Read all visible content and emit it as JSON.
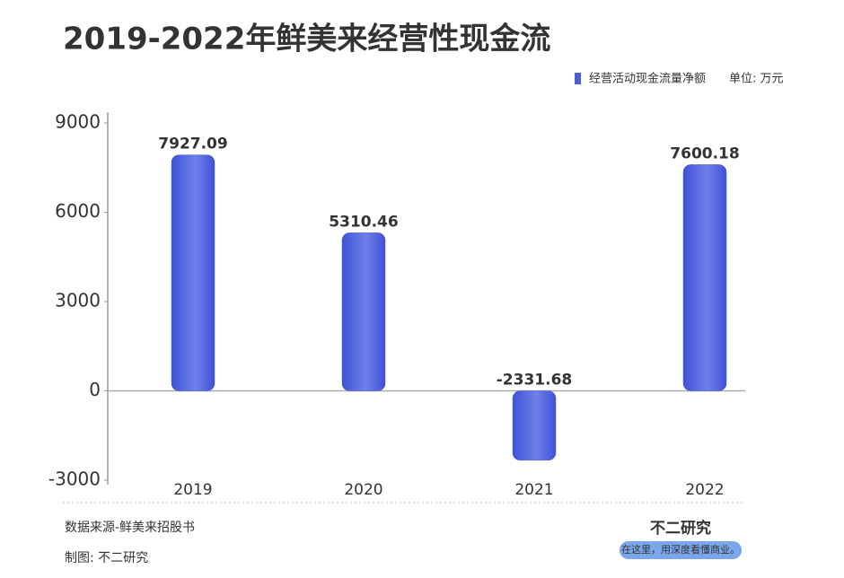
{
  "chart_data": {
    "type": "bar",
    "title": "2019-2022年鲜美来经营性现金流",
    "categories": [
      "2019",
      "2020",
      "2021",
      "2022"
    ],
    "series": [
      {
        "name": "经营活动现金流量净额",
        "color": "#4a5fd8",
        "values": [
          7927.09,
          5310.46,
          -2331.68,
          7600.18
        ]
      }
    ],
    "unit": "单位: 万元",
    "ylim": [
      -3000,
      9000
    ],
    "yticks": [
      -3000,
      0,
      3000,
      6000,
      9000
    ],
    "legend": "top-right",
    "source": "数据来源-鲜美来招股书",
    "credit": "制图: 不二研究",
    "brand": "不二研究",
    "tagline": "在这里，用深度看懂商业。"
  }
}
